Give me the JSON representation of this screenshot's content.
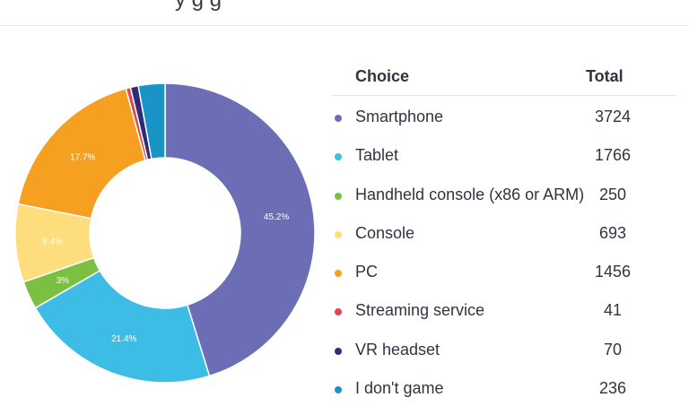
{
  "header": {
    "title_fragment": "y     g  g"
  },
  "legend": {
    "choice_header": "Choice",
    "total_header": "Total",
    "rows": [
      {
        "choice": "Smartphone",
        "total": "3724",
        "color": "#6b6db5"
      },
      {
        "choice": "Tablet",
        "total": "1766",
        "color": "#3dbde6"
      },
      {
        "choice": "Handheld console (x86 or ARM)",
        "total": "250",
        "color": "#7bc043"
      },
      {
        "choice": "Console",
        "total": "693",
        "color": "#fedd7c"
      },
      {
        "choice": "PC",
        "total": "1456",
        "color": "#f5a021"
      },
      {
        "choice": "Streaming service",
        "total": "41",
        "color": "#e0474c"
      },
      {
        "choice": "VR headset",
        "total": "70",
        "color": "#2c2c7a"
      },
      {
        "choice": "I don't game",
        "total": "236",
        "color": "#1a93c6"
      }
    ]
  },
  "chart_data": {
    "type": "pie",
    "categories": [
      "Smartphone",
      "Tablet",
      "Handheld console (x86 or ARM)",
      "Console",
      "PC",
      "Streaming service",
      "VR headset",
      "I don't game"
    ],
    "values": [
      3724,
      1766,
      250,
      693,
      1456,
      41,
      70,
      236
    ],
    "colors": [
      "#6b6db5",
      "#3dbde6",
      "#7bc043",
      "#fedd7c",
      "#f5a021",
      "#e0474c",
      "#2c2c7a",
      "#1a93c6"
    ],
    "data_labels": [
      "45.2%",
      "21.4%",
      "3%",
      "8.4%",
      "17.7%",
      "",
      "",
      ""
    ],
    "donut": true
  }
}
